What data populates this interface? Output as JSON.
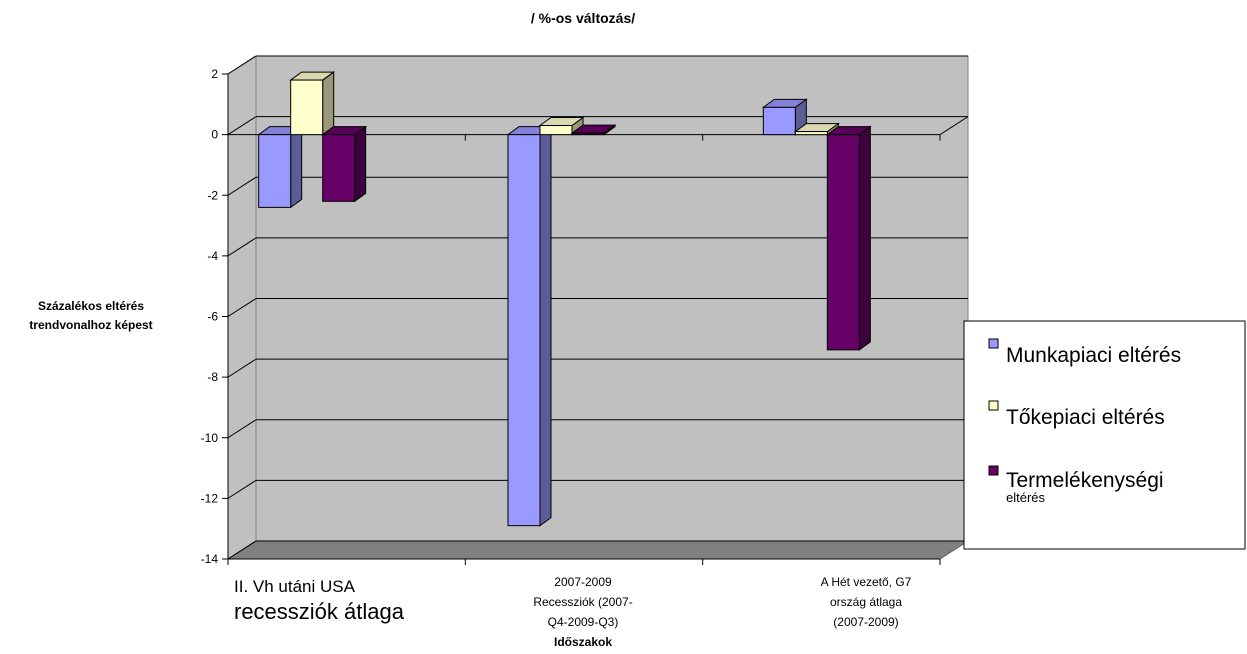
{
  "chart_data": {
    "type": "bar",
    "title": "/ %-os változás/",
    "ylabel": [
      "Százalékos eltérés",
      "trendvonalhoz képest"
    ],
    "xlabel": "Időszakok",
    "ylim": [
      -14,
      2
    ],
    "yticks": [
      "2",
      "0",
      "-2",
      "-4",
      "-6",
      "-8",
      "-10",
      "-12",
      "-14"
    ],
    "grid": true,
    "legend_position": "right",
    "categories": [
      [
        "II. Vh utáni USA",
        "recessziók átlaga"
      ],
      [
        "2007-2009",
        "Recessziók (2007-",
        "Q4-2009-Q3)"
      ],
      [
        "A Hét vezető, G7",
        "ország átlaga",
        "(2007-2009)"
      ]
    ],
    "series": [
      {
        "name": "Munkapiaci eltérés",
        "values": [
          -2.4,
          -12.9,
          0.9
        ],
        "color": "#9999ff"
      },
      {
        "name": "Tőkepiaci eltérés",
        "values": [
          1.8,
          0.3,
          0.1
        ],
        "color": "#ffffcc"
      },
      {
        "name_line1": "Termelékenységi",
        "name_line2": "eltérés",
        "values": [
          -2.2,
          0.05,
          -7.1
        ],
        "color": "#660066"
      }
    ]
  }
}
